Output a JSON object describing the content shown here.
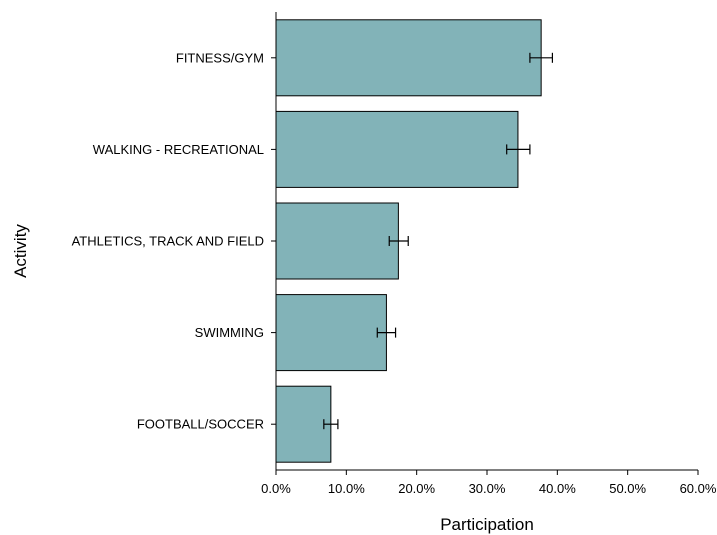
{
  "chart_data": {
    "type": "bar",
    "orientation": "horizontal",
    "categories": [
      "FITNESS/GYM",
      "WALKING - RECREATIONAL",
      "ATHLETICS, TRACK AND FIELD",
      "SWIMMING",
      "FOOTBALL/SOCCER"
    ],
    "values": [
      37.7,
      34.4,
      17.4,
      15.7,
      7.8
    ],
    "error_bars": [
      {
        "low": 36.1,
        "high": 39.3
      },
      {
        "low": 32.8,
        "high": 36.1
      },
      {
        "low": 16.1,
        "high": 18.8
      },
      {
        "low": 14.4,
        "high": 17.0
      },
      {
        "low": 6.8,
        "high": 8.8
      }
    ],
    "xlabel": "Participation",
    "ylabel": "Activity",
    "xlim": [
      0,
      60
    ],
    "x_ticks": [
      0,
      10,
      20,
      30,
      40,
      50,
      60
    ],
    "x_tick_labels": [
      "0.0%",
      "10.0%",
      "20.0%",
      "30.0%",
      "40.0%",
      "50.0%",
      "60.0%"
    ],
    "bar_color": "#82b3b8",
    "grid": false,
    "legend": false
  }
}
